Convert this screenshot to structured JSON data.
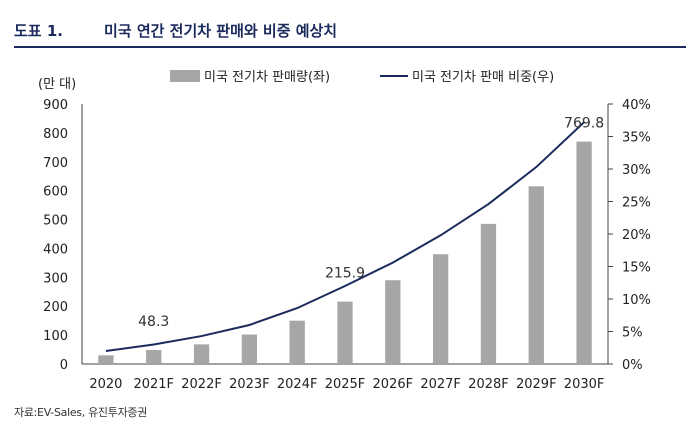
{
  "figure": {
    "label": "도표 1.",
    "title": "미국 연간 전기차 판매와 비중 예상치",
    "source": "자료:EV-Sales, 유진투자증권"
  },
  "chart_data": {
    "type": "bar+line",
    "categories": [
      "2020",
      "2021F",
      "2022F",
      "2023F",
      "2024F",
      "2025F",
      "2026F",
      "2027F",
      "2028F",
      "2029F",
      "2030F"
    ],
    "series": [
      {
        "name": "미국 전기차 판매량(좌)",
        "type": "bar",
        "axis": "left",
        "values": [
          30,
          48.3,
          68,
          102,
          150,
          215.9,
          290,
          380,
          485,
          615,
          769.8
        ],
        "color": "#a6a6a6"
      },
      {
        "name": "미국 전기차 판매 비중(우)",
        "type": "line",
        "axis": "right",
        "values": [
          2.0,
          3.0,
          4.3,
          6.0,
          8.6,
          12.0,
          15.6,
          19.8,
          24.6,
          30.3,
          37.2
        ],
        "color": "#1b2a5c"
      }
    ],
    "annotations": [
      {
        "category": "2021F",
        "text": "48.3"
      },
      {
        "category": "2025F",
        "text": "215.9"
      },
      {
        "category": "2030F",
        "text": "769.8"
      }
    ],
    "y_left": {
      "label": "(만 대)",
      "min": 0,
      "max": 900,
      "ticks": [
        "0",
        "100",
        "200",
        "300",
        "400",
        "500",
        "600",
        "700",
        "800",
        "900"
      ]
    },
    "y_right": {
      "min": 0,
      "max": 40,
      "ticks": [
        "0%",
        "5%",
        "10%",
        "15%",
        "20%",
        "25%",
        "30%",
        "35%",
        "40%"
      ]
    },
    "legend_position": "top",
    "grid": false
  }
}
